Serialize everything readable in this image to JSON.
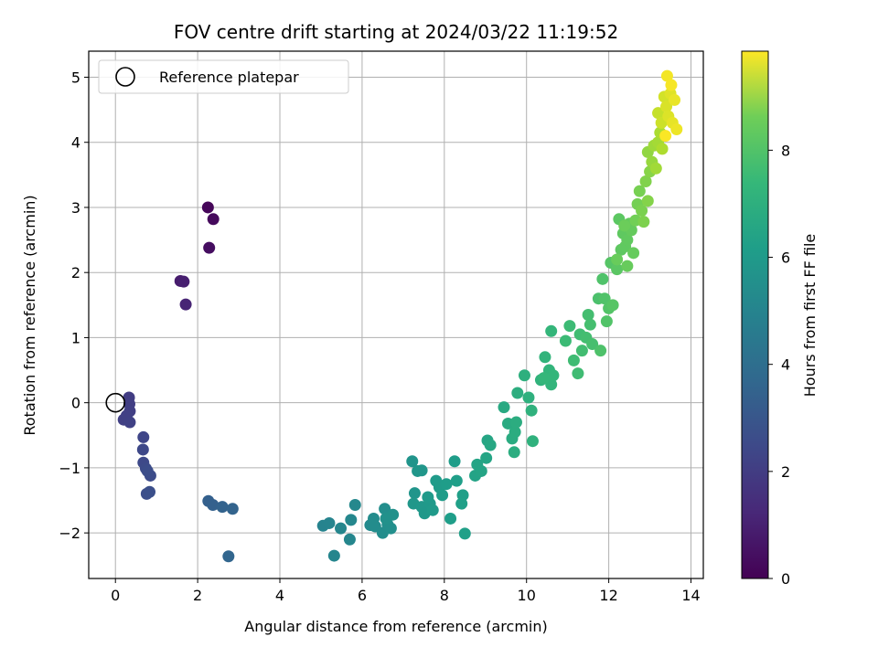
{
  "chart_data": {
    "type": "scatter",
    "title": "FOV centre drift starting at 2024/03/22 11:19:52",
    "xlabel": "Angular distance from reference (arcmin)",
    "ylabel": "Rotation from reference (arcmin)",
    "xlim": [
      -0.65,
      14.3
    ],
    "ylim": [
      -2.7,
      5.4
    ],
    "xticks": [
      0,
      2,
      4,
      6,
      8,
      10,
      12,
      14
    ],
    "yticks": [
      -2,
      -1,
      0,
      1,
      2,
      3,
      4,
      5
    ],
    "grid": true,
    "legend": {
      "placement": "top-left",
      "entries": [
        "Reference platepar"
      ]
    },
    "reference_point": {
      "x": 0,
      "y": 0,
      "label": "Reference platepar"
    },
    "colorbar": {
      "label": "Hours from first FF file",
      "colormap": "viridis",
      "range": [
        0,
        9.85
      ],
      "ticks": [
        0,
        2,
        4,
        6,
        8
      ]
    },
    "points": [
      [
        2.25,
        3.0,
        0.15
      ],
      [
        2.38,
        2.82,
        0.25
      ],
      [
        2.28,
        2.38,
        0.35
      ],
      [
        1.58,
        1.87,
        0.75
      ],
      [
        1.66,
        1.86,
        0.85
      ],
      [
        1.71,
        1.51,
        1.0
      ],
      [
        0.33,
        0.08,
        1.8
      ],
      [
        0.34,
        -0.02,
        1.82
      ],
      [
        0.35,
        -0.13,
        1.85
      ],
      [
        0.2,
        -0.26,
        1.88
      ],
      [
        0.27,
        -0.2,
        1.9
      ],
      [
        0.35,
        -0.3,
        1.92
      ],
      [
        0.68,
        -0.53,
        2.1
      ],
      [
        0.67,
        -0.72,
        2.15
      ],
      [
        0.68,
        -0.92,
        2.2
      ],
      [
        0.74,
        -1.01,
        2.25
      ],
      [
        0.85,
        -1.12,
        2.3
      ],
      [
        0.78,
        -1.05,
        2.32
      ],
      [
        0.76,
        -1.4,
        2.35
      ],
      [
        0.83,
        -1.37,
        2.4
      ],
      [
        2.26,
        -1.51,
        3.0
      ],
      [
        2.37,
        -1.57,
        3.05
      ],
      [
        2.6,
        -1.6,
        3.1
      ],
      [
        2.85,
        -1.63,
        3.15
      ],
      [
        2.75,
        -2.36,
        3.2
      ],
      [
        5.05,
        -1.89,
        4.4
      ],
      [
        5.2,
        -1.85,
        4.45
      ],
      [
        5.32,
        -2.35,
        4.5
      ],
      [
        5.48,
        -1.93,
        4.52
      ],
      [
        5.7,
        -2.1,
        4.55
      ],
      [
        5.73,
        -1.8,
        4.58
      ],
      [
        5.83,
        -1.57,
        4.6
      ],
      [
        6.2,
        -1.88,
        4.7
      ],
      [
        6.28,
        -1.78,
        4.75
      ],
      [
        6.32,
        -1.9,
        4.78
      ],
      [
        6.5,
        -2.0,
        4.8
      ],
      [
        6.55,
        -1.63,
        4.85
      ],
      [
        6.62,
        -1.87,
        4.88
      ],
      [
        6.7,
        -1.93,
        4.9
      ],
      [
        6.75,
        -1.72,
        4.95
      ],
      [
        6.58,
        -1.78,
        4.97
      ],
      [
        7.22,
        -0.9,
        5.1
      ],
      [
        7.28,
        -1.39,
        5.12
      ],
      [
        7.35,
        -1.05,
        5.15
      ],
      [
        7.45,
        -1.04,
        5.17
      ],
      [
        7.25,
        -1.55,
        5.2
      ],
      [
        7.45,
        -1.6,
        5.22
      ],
      [
        7.52,
        -1.7,
        5.25
      ],
      [
        7.65,
        -1.55,
        5.27
      ],
      [
        7.72,
        -1.65,
        5.3
      ],
      [
        7.6,
        -1.45,
        5.32
      ],
      [
        7.8,
        -1.2,
        5.35
      ],
      [
        7.88,
        -1.3,
        5.37
      ],
      [
        7.95,
        -1.42,
        5.4
      ],
      [
        8.05,
        -1.25,
        5.42
      ],
      [
        8.25,
        -0.9,
        5.45
      ],
      [
        8.15,
        -1.78,
        5.47
      ],
      [
        8.3,
        -1.2,
        5.5
      ],
      [
        8.45,
        -1.42,
        5.52
      ],
      [
        8.42,
        -1.55,
        5.55
      ],
      [
        8.5,
        -2.01,
        5.57
      ],
      [
        8.75,
        -1.12,
        5.7
      ],
      [
        8.8,
        -0.95,
        5.72
      ],
      [
        8.9,
        -1.05,
        5.75
      ],
      [
        9.02,
        -0.85,
        5.77
      ],
      [
        9.05,
        -0.58,
        5.8
      ],
      [
        9.12,
        -0.65,
        5.85
      ],
      [
        9.45,
        -0.07,
        5.95
      ],
      [
        9.55,
        -0.32,
        6.0
      ],
      [
        9.65,
        -0.55,
        6.05
      ],
      [
        9.72,
        -0.45,
        6.07
      ],
      [
        9.75,
        -0.3,
        6.1
      ],
      [
        9.7,
        -0.76,
        6.12
      ],
      [
        9.78,
        0.15,
        6.15
      ],
      [
        9.95,
        0.42,
        6.2
      ],
      [
        10.05,
        0.08,
        6.25
      ],
      [
        10.12,
        -0.12,
        6.3
      ],
      [
        10.15,
        -0.59,
        6.32
      ],
      [
        10.35,
        0.35,
        6.35
      ],
      [
        10.45,
        0.7,
        6.4
      ],
      [
        10.55,
        0.5,
        6.42
      ],
      [
        10.6,
        0.28,
        6.45
      ],
      [
        10.65,
        0.42,
        6.47
      ],
      [
        10.6,
        1.1,
        6.5
      ],
      [
        10.42,
        0.38,
        6.52
      ],
      [
        10.95,
        0.95,
        6.7
      ],
      [
        11.05,
        1.18,
        6.72
      ],
      [
        11.15,
        0.65,
        6.75
      ],
      [
        11.25,
        0.45,
        6.78
      ],
      [
        11.3,
        1.05,
        6.8
      ],
      [
        11.35,
        0.8,
        6.82
      ],
      [
        11.45,
        1.0,
        6.85
      ],
      [
        11.5,
        1.35,
        6.87
      ],
      [
        11.55,
        1.2,
        6.9
      ],
      [
        11.6,
        0.9,
        6.92
      ],
      [
        11.75,
        1.6,
        7.0
      ],
      [
        11.8,
        0.8,
        7.05
      ],
      [
        11.85,
        1.9,
        7.08
      ],
      [
        11.9,
        1.6,
        7.1
      ],
      [
        11.95,
        1.25,
        7.12
      ],
      [
        12.0,
        1.45,
        7.15
      ],
      [
        12.05,
        2.15,
        7.2
      ],
      [
        12.1,
        1.5,
        7.22
      ],
      [
        12.2,
        2.05,
        7.3
      ],
      [
        12.25,
        2.82,
        7.32
      ],
      [
        12.3,
        2.35,
        7.35
      ],
      [
        12.35,
        2.6,
        7.38
      ],
      [
        12.4,
        2.4,
        7.4
      ],
      [
        12.45,
        2.5,
        7.42
      ],
      [
        12.5,
        2.75,
        7.45
      ],
      [
        12.55,
        2.65,
        7.48
      ],
      [
        12.6,
        2.3,
        7.5
      ],
      [
        12.45,
        2.1,
        7.52
      ],
      [
        12.2,
        2.2,
        7.55
      ],
      [
        12.38,
        2.72,
        7.6
      ],
      [
        12.65,
        2.8,
        7.7
      ],
      [
        12.7,
        3.05,
        7.75
      ],
      [
        12.75,
        3.25,
        7.8
      ],
      [
        12.8,
        2.95,
        7.85
      ],
      [
        12.85,
        2.78,
        7.9
      ],
      [
        12.9,
        3.4,
        7.95
      ],
      [
        12.95,
        3.1,
        8.0
      ],
      [
        13.0,
        3.55,
        8.05
      ],
      [
        12.95,
        3.85,
        8.2
      ],
      [
        13.05,
        3.7,
        8.3
      ],
      [
        13.1,
        3.95,
        8.4
      ],
      [
        13.15,
        3.6,
        8.45
      ],
      [
        13.2,
        4.0,
        8.5
      ],
      [
        13.25,
        4.15,
        8.6
      ],
      [
        13.3,
        3.9,
        8.65
      ],
      [
        13.2,
        4.45,
        9.0
      ],
      [
        13.28,
        4.3,
        9.1
      ],
      [
        13.35,
        4.7,
        9.2
      ],
      [
        13.4,
        4.55,
        9.3
      ],
      [
        13.45,
        4.4,
        9.35
      ],
      [
        13.5,
        4.75,
        9.4
      ],
      [
        13.55,
        4.3,
        9.5
      ],
      [
        13.6,
        4.65,
        9.55
      ],
      [
        13.65,
        4.2,
        9.6
      ],
      [
        13.42,
        5.02,
        9.7
      ],
      [
        13.52,
        4.88,
        9.75
      ],
      [
        13.38,
        4.1,
        9.8
      ]
    ]
  }
}
